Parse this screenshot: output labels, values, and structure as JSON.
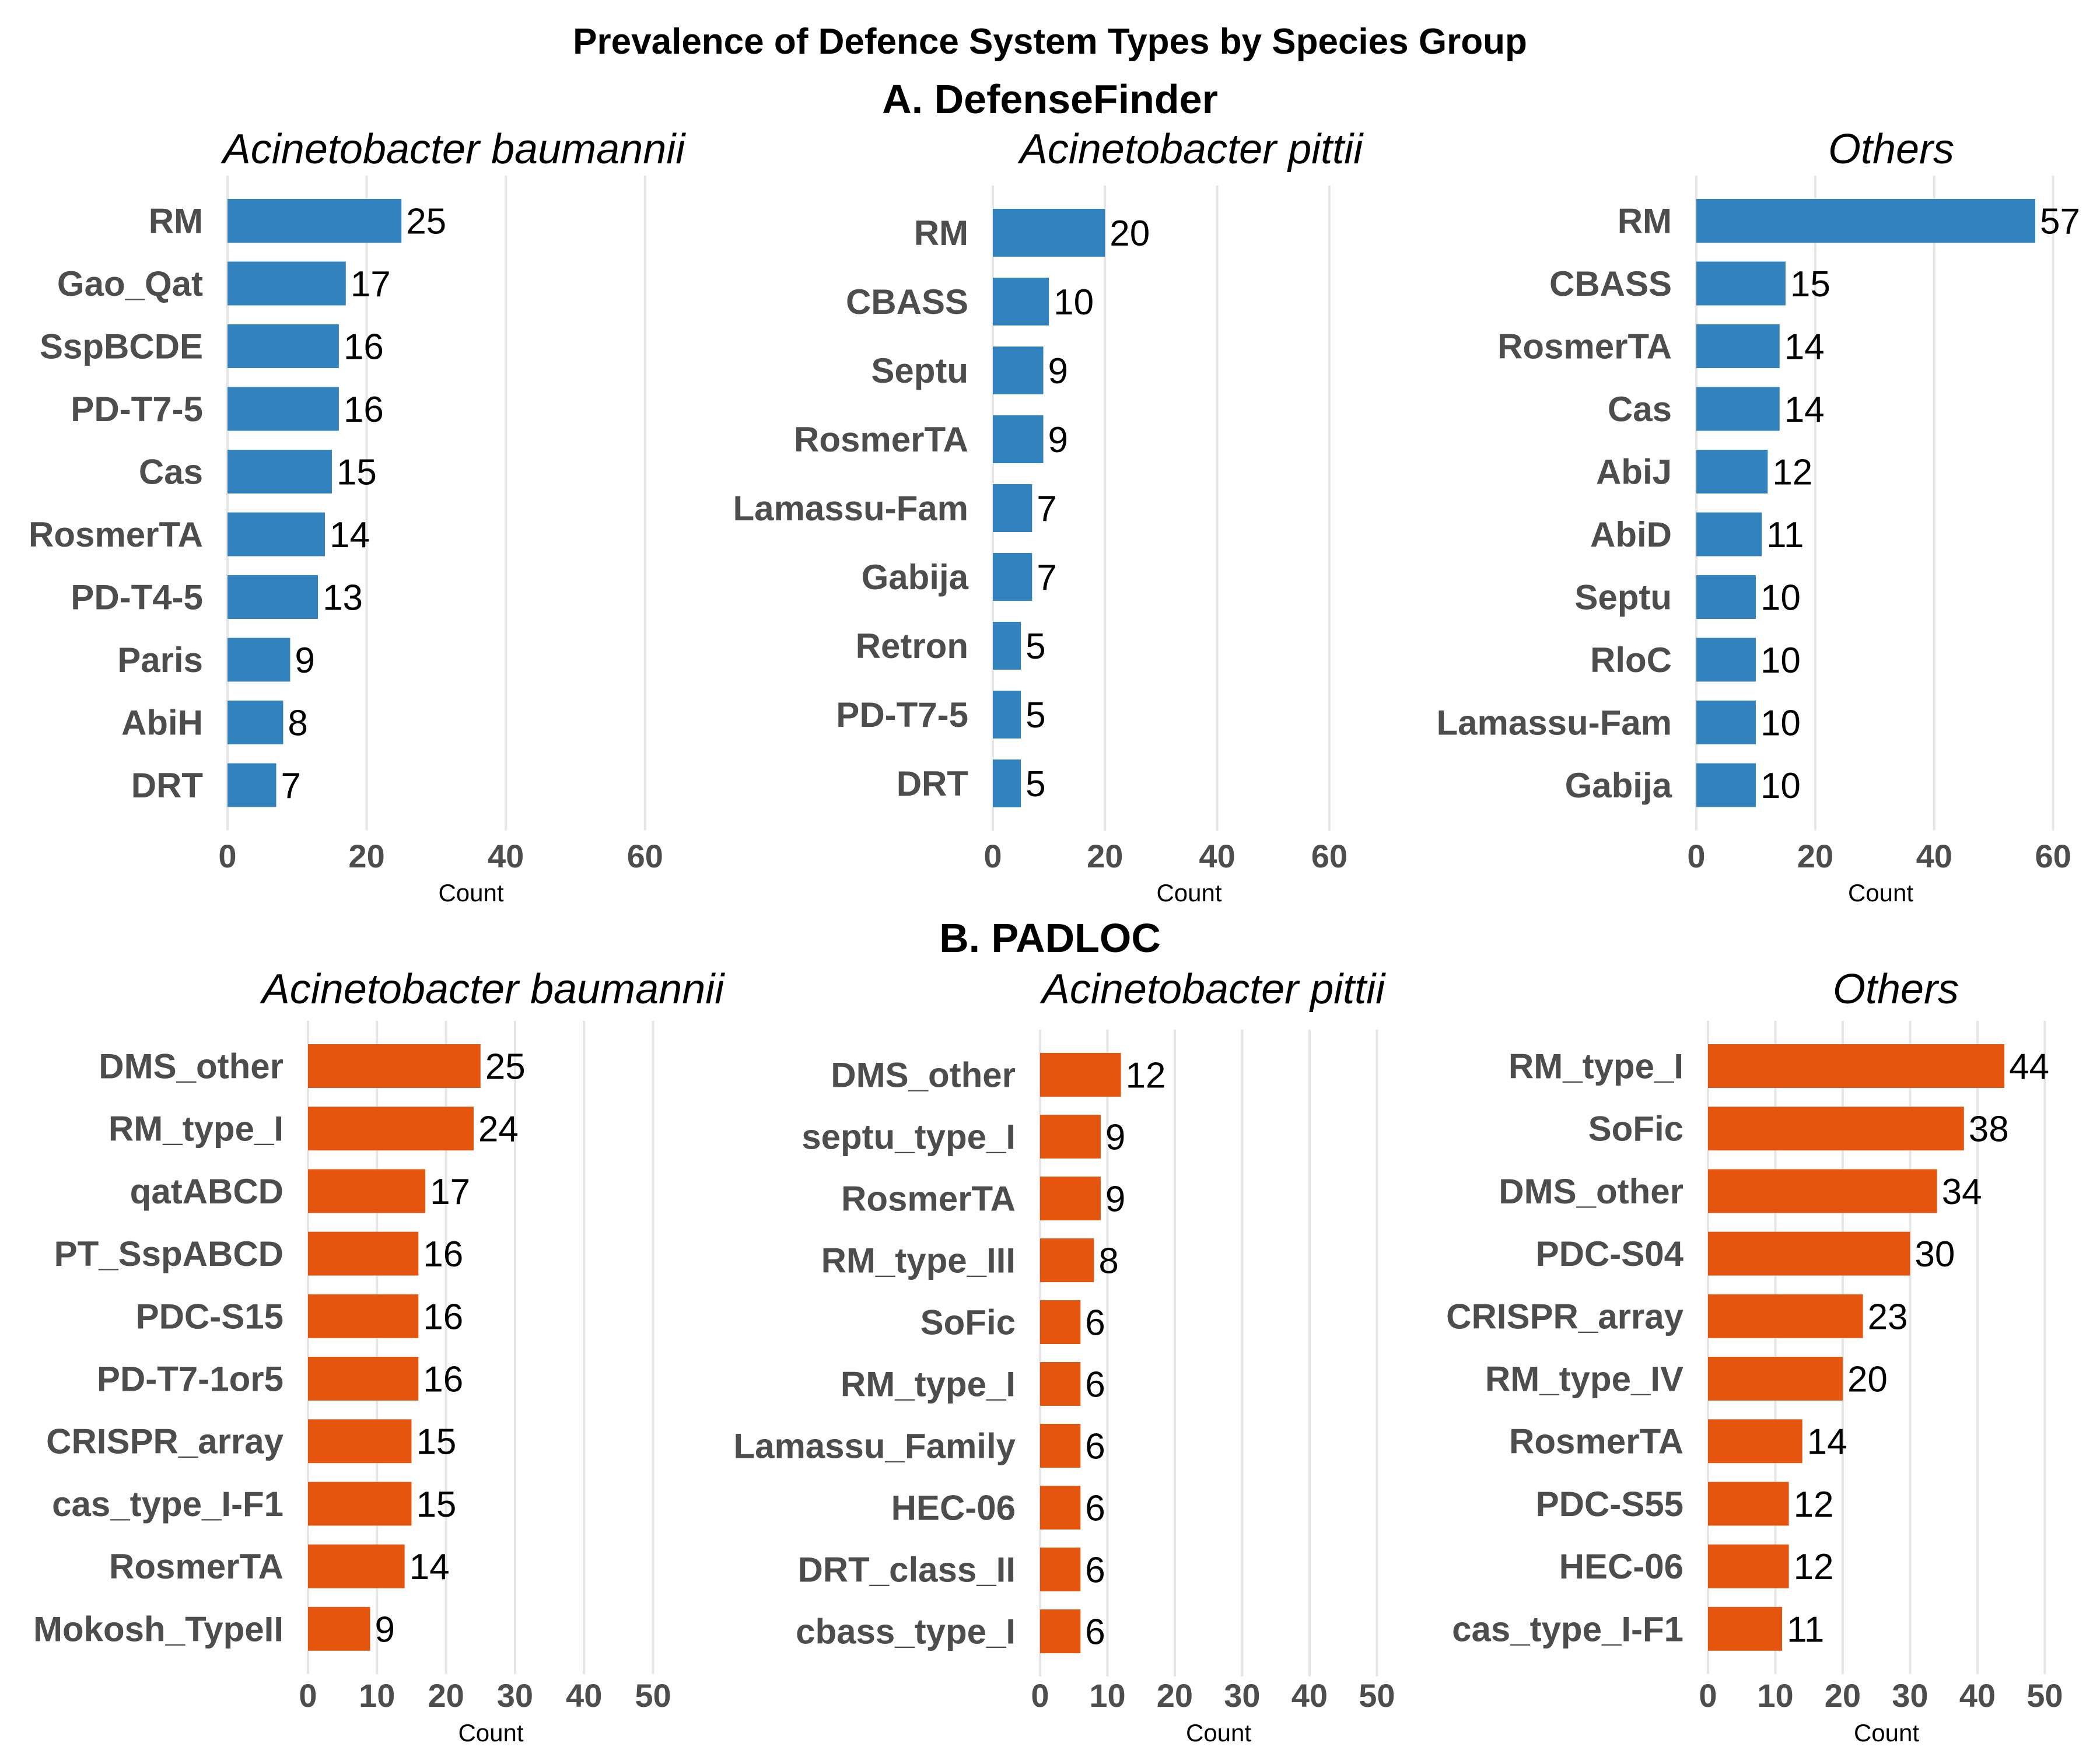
{
  "title": "Prevalence of Defence System Types by Species Group",
  "sections": [
    {
      "title": "A. DefenseFinder",
      "color": "#3182bd"
    },
    {
      "title": "B. PADLOC",
      "color": "#e6550d"
    }
  ],
  "chart_data": [
    {
      "type": "bar",
      "orientation": "horizontal",
      "section": "A. DefenseFinder",
      "title": "Acinetobacter baumannii",
      "xlabel": "Count",
      "xlim": [
        0,
        70
      ],
      "xticks": [
        0,
        20,
        40,
        60
      ],
      "categories": [
        "RM",
        "Gao_Qat",
        "SspBCDE",
        "PD-T7-5",
        "Cas",
        "RosmerTA",
        "PD-T4-5",
        "Paris",
        "AbiH",
        "DRT"
      ],
      "values": [
        25,
        17,
        16,
        16,
        15,
        14,
        13,
        9,
        8,
        7
      ]
    },
    {
      "type": "bar",
      "orientation": "horizontal",
      "section": "A. DefenseFinder",
      "title": "Acinetobacter pittii",
      "xlabel": "Count",
      "xlim": [
        0,
        70
      ],
      "xticks": [
        0,
        20,
        40,
        60
      ],
      "categories": [
        "RM",
        "CBASS",
        "Septu",
        "RosmerTA",
        "Lamassu-Fam",
        "Gabija",
        "Retron",
        "PD-T7-5",
        "DRT"
      ],
      "values": [
        20,
        10,
        9,
        9,
        7,
        7,
        5,
        5,
        5
      ]
    },
    {
      "type": "bar",
      "orientation": "horizontal",
      "section": "A. DefenseFinder",
      "title": "Others",
      "xlabel": "Count",
      "xlim": [
        0,
        62
      ],
      "xticks": [
        0,
        20,
        40,
        60
      ],
      "categories": [
        "RM",
        "CBASS",
        "RosmerTA",
        "Cas",
        "AbiJ",
        "AbiD",
        "Septu",
        "RloC",
        "Lamassu-Fam",
        "Gabija"
      ],
      "values": [
        57,
        15,
        14,
        14,
        12,
        11,
        10,
        10,
        10,
        10
      ]
    },
    {
      "type": "bar",
      "orientation": "horizontal",
      "section": "B. PADLOC",
      "title": "Acinetobacter baumannii",
      "xlabel": "Count",
      "xlim": [
        0,
        53
      ],
      "xticks": [
        0,
        10,
        20,
        30,
        40,
        50
      ],
      "categories": [
        "DMS_other",
        "RM_type_I",
        "qatABCD",
        "PT_SspABCD",
        "PDC-S15",
        "PD-T7-1or5",
        "CRISPR_array",
        "cas_type_I-F1",
        "RosmerTA",
        "Mokosh_TypeII"
      ],
      "values": [
        25,
        24,
        17,
        16,
        16,
        16,
        15,
        15,
        14,
        9
      ]
    },
    {
      "type": "bar",
      "orientation": "horizontal",
      "section": "B. PADLOC",
      "title": "Acinetobacter pittii",
      "xlabel": "Count",
      "xlim": [
        0,
        53
      ],
      "xticks": [
        0,
        10,
        20,
        30,
        40,
        50
      ],
      "categories": [
        "DMS_other",
        "septu_type_I",
        "RosmerTA",
        "RM_type_III",
        "SoFic",
        "RM_type_I",
        "Lamassu_Family",
        "HEC-06",
        "DRT_class_II",
        "cbass_type_I"
      ],
      "values": [
        12,
        9,
        9,
        8,
        6,
        6,
        6,
        6,
        6,
        6
      ]
    },
    {
      "type": "bar",
      "orientation": "horizontal",
      "section": "B. PADLOC",
      "title": "Others",
      "xlabel": "Count",
      "xlim": [
        0,
        53
      ],
      "xticks": [
        0,
        10,
        20,
        30,
        40,
        50
      ],
      "categories": [
        "RM_type_I",
        "SoFic",
        "DMS_other",
        "PDC-S04",
        "CRISPR_array",
        "RM_type_IV",
        "RosmerTA",
        "PDC-S55",
        "HEC-06",
        "cas_type_I-F1"
      ],
      "values": [
        44,
        38,
        34,
        30,
        23,
        20,
        14,
        12,
        12,
        11
      ]
    }
  ]
}
